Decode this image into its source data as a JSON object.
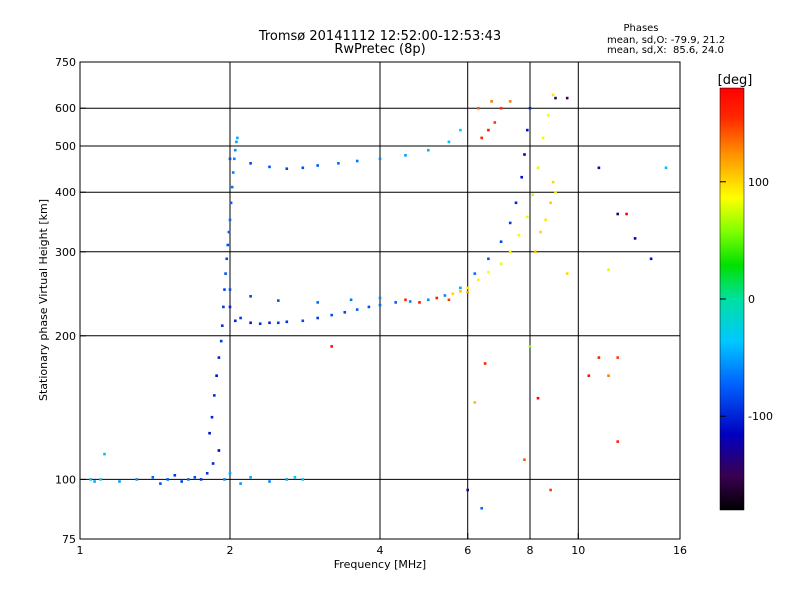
{
  "title_line1": "Tromsø 20141112 12:52:00-12:53:43",
  "title_line2": "RwPretec (8p)",
  "phase_stats": {
    "heading": "Phases",
    "o_line": "mean, sd,O: -79.9, 21.2",
    "x_line": "mean, sd,X:  85.6, 24.0"
  },
  "chart_data": {
    "type": "scatter",
    "xlabel": "Frequency [MHz]",
    "ylabel": "Stationary phase Virtual Height [km]",
    "x_scale": "log",
    "y_scale": "log",
    "xlim": [
      1,
      16
    ],
    "ylim": [
      75,
      750
    ],
    "x_ticks": [
      1,
      2,
      4,
      6,
      8,
      10,
      16
    ],
    "x_tick_labels": [
      "1",
      "2",
      "4",
      "6",
      "8",
      "10",
      "16"
    ],
    "y_ticks": [
      75,
      100,
      200,
      300,
      400,
      500,
      600,
      750
    ],
    "y_tick_labels": [
      "75",
      "100",
      "200",
      "300",
      "400",
      "500",
      "600",
      "750"
    ],
    "x_gridlines": [
      2,
      4,
      6,
      8,
      10
    ],
    "y_gridlines": [
      100,
      200,
      300,
      400,
      500,
      600
    ],
    "grid": true,
    "colorbar": {
      "label": "[deg]",
      "range": [
        -180,
        180
      ],
      "ticks": [
        100,
        0,
        -100
      ],
      "tick_labels": [
        "100",
        "0",
        "-100"
      ],
      "colormap": "rainbow"
    },
    "series": [
      {
        "points": [
          [
            1.05,
            100,
            -40
          ],
          [
            1.07,
            99,
            -45
          ],
          [
            1.1,
            100,
            -35
          ],
          [
            1.12,
            113,
            -40
          ],
          [
            1.2,
            99,
            -50
          ],
          [
            1.3,
            100,
            -55
          ],
          [
            1.4,
            101,
            -70
          ],
          [
            1.45,
            98,
            -80
          ],
          [
            1.5,
            100,
            -75
          ],
          [
            1.55,
            102,
            -90
          ],
          [
            1.6,
            99,
            -85
          ],
          [
            1.65,
            100,
            -70
          ],
          [
            1.7,
            101,
            -80
          ],
          [
            1.75,
            100,
            -95
          ],
          [
            1.8,
            103,
            -90
          ],
          [
            1.85,
            108,
            -100
          ],
          [
            1.9,
            115,
            -120
          ],
          [
            1.95,
            100,
            -60
          ],
          [
            2.0,
            103,
            -50
          ],
          [
            2.1,
            98,
            -55
          ],
          [
            2.2,
            101,
            -45
          ],
          [
            2.4,
            99,
            -60
          ],
          [
            2.6,
            100,
            -50
          ],
          [
            2.7,
            101,
            -30
          ],
          [
            1.82,
            125,
            -110
          ],
          [
            1.84,
            135,
            -100
          ],
          [
            1.86,
            150,
            -95
          ],
          [
            1.88,
            165,
            -110
          ],
          [
            1.9,
            180,
            -100
          ],
          [
            1.92,
            195,
            -90
          ],
          [
            1.93,
            210,
            -95
          ],
          [
            1.94,
            230,
            -90
          ],
          [
            1.95,
            250,
            -85
          ],
          [
            1.96,
            270,
            -80
          ],
          [
            1.97,
            290,
            -85
          ],
          [
            1.98,
            310,
            -80
          ],
          [
            1.99,
            330,
            -75
          ],
          [
            2.0,
            350,
            -70
          ],
          [
            2.01,
            380,
            -75
          ],
          [
            2.02,
            410,
            -65
          ],
          [
            2.03,
            440,
            -60
          ],
          [
            2.04,
            470,
            -60
          ],
          [
            2.05,
            490,
            -55
          ],
          [
            2.06,
            510,
            -50
          ],
          [
            2.07,
            520,
            -45
          ],
          [
            2.0,
            230,
            -100
          ],
          [
            2.05,
            215,
            -100
          ],
          [
            2.1,
            218,
            -90
          ],
          [
            2.2,
            213,
            -105
          ],
          [
            2.3,
            212,
            -95
          ],
          [
            2.4,
            213,
            -100
          ],
          [
            2.5,
            213,
            -90
          ],
          [
            2.6,
            214,
            -95
          ],
          [
            2.8,
            215,
            -85
          ],
          [
            3.0,
            218,
            -90
          ],
          [
            3.2,
            221,
            -80
          ],
          [
            3.4,
            224,
            -85
          ],
          [
            3.6,
            227,
            -75
          ],
          [
            3.8,
            230,
            -80
          ],
          [
            4.0,
            232,
            -70
          ],
          [
            4.3,
            235,
            -75
          ],
          [
            4.6,
            236,
            -60
          ],
          [
            5.0,
            238,
            -55
          ],
          [
            5.4,
            243,
            -60
          ],
          [
            5.8,
            252,
            -50
          ],
          [
            6.2,
            270,
            -70
          ],
          [
            6.6,
            290,
            -80
          ],
          [
            7.0,
            315,
            -85
          ],
          [
            7.3,
            345,
            -90
          ],
          [
            7.5,
            380,
            -100
          ],
          [
            7.7,
            430,
            -110
          ],
          [
            7.8,
            480,
            -120
          ],
          [
            7.9,
            540,
            -110
          ],
          [
            8.0,
            600,
            -100
          ],
          [
            2.0,
            250,
            -80
          ],
          [
            2.2,
            242,
            -85
          ],
          [
            2.5,
            237,
            -80
          ],
          [
            3.0,
            235,
            -70
          ],
          [
            3.5,
            238,
            -65
          ],
          [
            4.0,
            240,
            -60
          ],
          [
            4.5,
            238,
            160
          ],
          [
            4.8,
            235,
            170
          ],
          [
            5.2,
            240,
            165
          ],
          [
            5.5,
            238,
            150
          ],
          [
            6.0,
            247,
            120
          ],
          [
            2.0,
            470,
            -85
          ],
          [
            2.2,
            460,
            -85
          ],
          [
            2.4,
            452,
            -80
          ],
          [
            2.6,
            448,
            -85
          ],
          [
            2.8,
            450,
            -80
          ],
          [
            3.0,
            455,
            -75
          ],
          [
            3.3,
            460,
            -70
          ],
          [
            3.6,
            465,
            -65
          ],
          [
            4.0,
            470,
            -60
          ],
          [
            4.5,
            478,
            -50
          ],
          [
            5.0,
            490,
            -45
          ],
          [
            5.5,
            510,
            -40
          ],
          [
            5.8,
            540,
            -30
          ],
          [
            5.6,
            245,
            100
          ],
          [
            5.8,
            248,
            105
          ],
          [
            6.0,
            252,
            95
          ],
          [
            6.3,
            262,
            90
          ],
          [
            6.6,
            272,
            85
          ],
          [
            7.0,
            283,
            80
          ],
          [
            7.3,
            300,
            90
          ],
          [
            7.6,
            325,
            85
          ],
          [
            7.9,
            355,
            80
          ],
          [
            8.1,
            395,
            75
          ],
          [
            8.3,
            450,
            80
          ],
          [
            8.5,
            520,
            90
          ],
          [
            8.7,
            580,
            85
          ],
          [
            8.9,
            640,
            95
          ],
          [
            8.2,
            300,
            110
          ],
          [
            8.4,
            330,
            100
          ],
          [
            8.6,
            350,
            95
          ],
          [
            8.8,
            380,
            105
          ],
          [
            9.0,
            400,
            90
          ],
          [
            8.9,
            420,
            100
          ],
          [
            6.4,
            520,
            160
          ],
          [
            6.6,
            540,
            170
          ],
          [
            6.8,
            560,
            150
          ],
          [
            7.0,
            600,
            155
          ],
          [
            6.3,
            600,
            140
          ],
          [
            6.7,
            620,
            130
          ],
          [
            7.3,
            620,
            130
          ],
          [
            9.0,
            630,
            -140
          ],
          [
            9.5,
            630,
            -150
          ],
          [
            11.0,
            450,
            -130
          ],
          [
            12.0,
            360,
            -140
          ],
          [
            13.0,
            320,
            -120
          ],
          [
            14.0,
            290,
            -110
          ],
          [
            15.0,
            450,
            -40
          ],
          [
            6.0,
            95,
            -140
          ],
          [
            6.4,
            87,
            -70
          ],
          [
            6.2,
            145,
            110
          ],
          [
            6.5,
            175,
            160
          ],
          [
            8.0,
            190,
            60
          ],
          [
            8.3,
            148,
            180
          ],
          [
            7.8,
            110,
            140
          ],
          [
            8.8,
            95,
            150
          ],
          [
            10.5,
            165,
            170
          ],
          [
            11.0,
            180,
            160
          ],
          [
            11.5,
            165,
            130
          ],
          [
            12.0,
            180,
            150
          ],
          [
            12.5,
            360,
            180
          ],
          [
            12.0,
            120,
            160
          ],
          [
            11.5,
            275,
            80
          ],
          [
            9.5,
            270,
            100
          ],
          [
            3.2,
            190,
            170
          ],
          [
            2.8,
            100,
            -40
          ]
        ]
      }
    ]
  }
}
